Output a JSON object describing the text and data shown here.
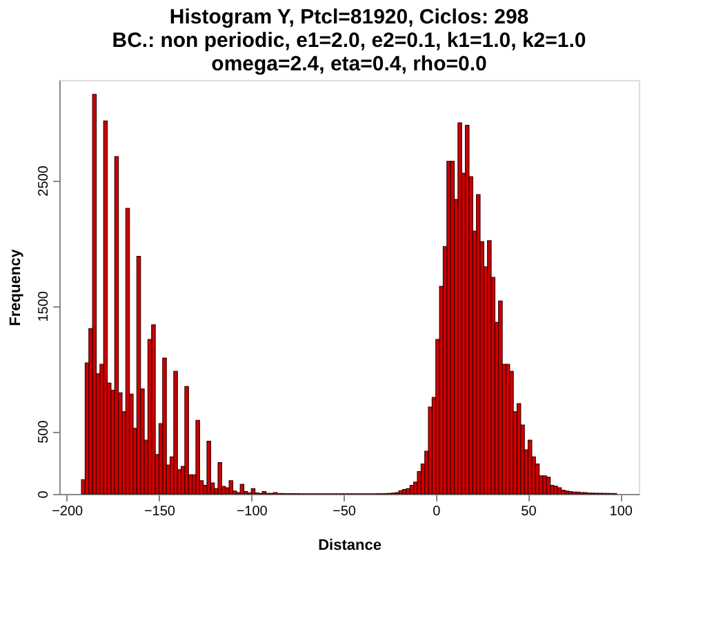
{
  "chart_data": {
    "type": "histogram",
    "title": "Histogram Y, Ptcl=81920, Ciclos: 298\nBC.: non periodic, e1=2.0, e2=0.1, k1=1.0, k2=1.0\nomega=2.4, eta=0.4, rho=0.0",
    "xlabel": "Distance",
    "ylabel": "Frequency",
    "bins": [
      -192,
      -190,
      -188,
      -186,
      -184,
      -182,
      -180,
      -178,
      -176,
      -174,
      -172,
      -170,
      -168,
      -166,
      -164,
      -162,
      -160,
      -158,
      -156,
      -154,
      -152,
      -150,
      -148,
      -146,
      -144,
      -142,
      -140,
      -138,
      -136,
      -134,
      -132,
      -130,
      -128,
      -126,
      -124,
      -122,
      -120,
      -118,
      -116,
      -114,
      -112,
      -110,
      -108,
      -106,
      -104,
      -102,
      -100,
      -98,
      -96,
      -94,
      -92,
      -90,
      -88,
      -86,
      -84,
      -82,
      -80,
      -78,
      -76,
      -74,
      -72,
      -70,
      -68,
      -66,
      -64,
      -62,
      -60,
      -58,
      -56,
      -54,
      -52,
      -50,
      -48,
      -46,
      -44,
      -42,
      -40,
      -38,
      -36,
      -34,
      -32,
      -30,
      -28,
      -26,
      -24,
      -22,
      -20,
      -18,
      -16,
      -14,
      -12,
      -10,
      -8,
      -6,
      -4,
      -2,
      0,
      2,
      4,
      6,
      8,
      10,
      12,
      14,
      16,
      18,
      20,
      22,
      24,
      26,
      28,
      30,
      32,
      34,
      36,
      38,
      40,
      42,
      44,
      46,
      48,
      50,
      52,
      54,
      56,
      58,
      60,
      62,
      64,
      66,
      68,
      70,
      72,
      74,
      76,
      78,
      80,
      82,
      84,
      86,
      88,
      90,
      92,
      94,
      96,
      98
    ],
    "values": [
      114,
      1045,
      1318,
      3186,
      958,
      1034,
      2973,
      883,
      826,
      2689,
      807,
      655,
      2277,
      795,
      523,
      1894,
      837,
      428,
      1231,
      1348,
      314,
      561,
      1083,
      231,
      295,
      977,
      193,
      220,
      856,
      152,
      152,
      587,
      106,
      68,
      420,
      87,
      42,
      250,
      60,
      49,
      106,
      23,
      11,
      76,
      19,
      8,
      42,
      8,
      4,
      19,
      4,
      4,
      11,
      3,
      3,
      2,
      2,
      2,
      2,
      1,
      1,
      1,
      1,
      1,
      1,
      1,
      1,
      1,
      1,
      1,
      1,
      1,
      1,
      1,
      1,
      1,
      1,
      1,
      1,
      1,
      2,
      2,
      3,
      4,
      6,
      11,
      26,
      35,
      42,
      68,
      95,
      178,
      239,
      341,
      693,
      769,
      1231,
      1655,
      1973,
      2652,
      2652,
      2348,
      2958,
      2557,
      2939,
      2530,
      2095,
      2386,
      2011,
      1811,
      2019,
      1727,
      1367,
      1538,
      1034,
      1034,
      977,
      655,
      720,
      549,
      352,
      428,
      295,
      239,
      144,
      144,
      133,
      68,
      61,
      49,
      30,
      23,
      19,
      15,
      15,
      11,
      11,
      6,
      6,
      5,
      5,
      4,
      4,
      3,
      3
    ],
    "color": "#cd0000",
    "xlim": [
      -204,
      110
    ],
    "xticks": [
      -200,
      -150,
      -100,
      -50,
      0,
      50,
      100
    ],
    "ylim": [
      0,
      3300
    ],
    "yticks": [
      0,
      500,
      1500,
      2500
    ],
    "grid": false
  }
}
